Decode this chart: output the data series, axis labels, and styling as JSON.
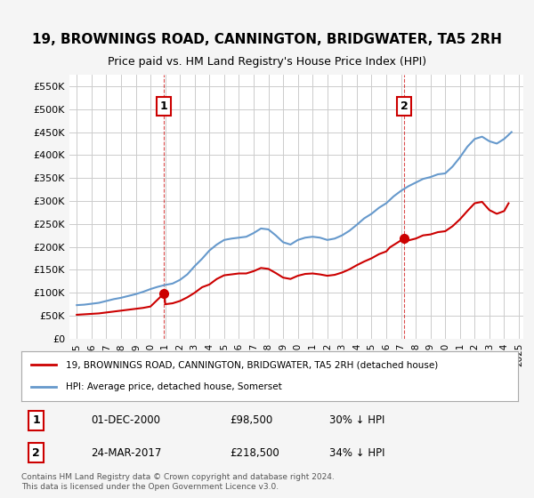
{
  "title": "19, BROWNINGS ROAD, CANNINGTON, BRIDGWATER, TA5 2RH",
  "subtitle": "Price paid vs. HM Land Registry's House Price Index (HPI)",
  "legend_line1": "19, BROWNINGS ROAD, CANNINGTON, BRIDGWATER, TA5 2RH (detached house)",
  "legend_line2": "HPI: Average price, detached house, Somerset",
  "footnote": "Contains HM Land Registry data © Crown copyright and database right 2024.\nThis data is licensed under the Open Government Licence v3.0.",
  "point1_label": "1",
  "point1_date": "01-DEC-2000",
  "point1_price": "£98,500",
  "point1_hpi": "30% ↓ HPI",
  "point2_label": "2",
  "point2_date": "24-MAR-2017",
  "point2_price": "£218,500",
  "point2_hpi": "34% ↓ HPI",
  "red_color": "#cc0000",
  "blue_color": "#6699cc",
  "ylim": [
    0,
    575000
  ],
  "yticks": [
    0,
    50000,
    100000,
    150000,
    200000,
    250000,
    300000,
    350000,
    400000,
    450000,
    500000,
    550000
  ],
  "ytick_labels": [
    "£0",
    "£50K",
    "£100K",
    "£150K",
    "£200K",
    "£250K",
    "£300K",
    "£350K",
    "£400K",
    "£450K",
    "£500K",
    "£550K"
  ],
  "hpi_years": [
    1995,
    1995.5,
    1996,
    1996.5,
    1997,
    1997.5,
    1998,
    1998.5,
    1999,
    1999.5,
    2000,
    2000.5,
    2001,
    2001.5,
    2002,
    2002.5,
    2003,
    2003.5,
    2004,
    2004.5,
    2005,
    2005.5,
    2006,
    2006.5,
    2007,
    2007.5,
    2008,
    2008.5,
    2009,
    2009.5,
    2010,
    2010.5,
    2011,
    2011.5,
    2012,
    2012.5,
    2013,
    2013.5,
    2014,
    2014.5,
    2015,
    2015.5,
    2016,
    2016.5,
    2017,
    2017.5,
    2018,
    2018.5,
    2019,
    2019.5,
    2020,
    2020.5,
    2021,
    2021.5,
    2022,
    2022.5,
    2023,
    2023.5,
    2024,
    2024.5
  ],
  "hpi_values": [
    73000,
    74000,
    76000,
    78000,
    82000,
    86000,
    89000,
    93000,
    97000,
    102000,
    108000,
    113000,
    117000,
    120000,
    128000,
    140000,
    158000,
    174000,
    192000,
    205000,
    215000,
    218000,
    220000,
    222000,
    230000,
    240000,
    238000,
    225000,
    210000,
    205000,
    215000,
    220000,
    222000,
    220000,
    215000,
    218000,
    225000,
    235000,
    248000,
    262000,
    272000,
    285000,
    295000,
    310000,
    322000,
    332000,
    340000,
    348000,
    352000,
    358000,
    360000,
    375000,
    395000,
    418000,
    435000,
    440000,
    430000,
    425000,
    435000,
    450000
  ],
  "red_years": [
    1995,
    1995.5,
    1996,
    1996.5,
    1997,
    1997.5,
    1998,
    1998.5,
    1999,
    1999.5,
    2000,
    2000.92,
    2001,
    2001.5,
    2002,
    2002.5,
    2003,
    2003.5,
    2004,
    2004.5,
    2005,
    2005.5,
    2006,
    2006.5,
    2007,
    2007.5,
    2008,
    2008.5,
    2009,
    2009.5,
    2010,
    2010.5,
    2011,
    2011.5,
    2012,
    2012.5,
    2013,
    2013.5,
    2014,
    2014.5,
    2015,
    2015.5,
    2016,
    2016.25,
    2017.22,
    2017.5,
    2018,
    2018.5,
    2019,
    2019.5,
    2020,
    2020.5,
    2021,
    2021.5,
    2022,
    2022.5,
    2023,
    2023.5,
    2024,
    2024.3
  ],
  "red_values": [
    52000,
    53000,
    54000,
    55000,
    57000,
    59000,
    61000,
    63000,
    65000,
    67000,
    70000,
    98500,
    75000,
    77000,
    82000,
    90000,
    100000,
    112000,
    118000,
    130000,
    138000,
    140000,
    142000,
    142000,
    147000,
    154000,
    152000,
    143000,
    133000,
    130000,
    137000,
    141000,
    142000,
    140000,
    137000,
    139000,
    144000,
    151000,
    160000,
    168000,
    175000,
    184000,
    190000,
    199000,
    218500,
    214000,
    218000,
    225000,
    227000,
    232000,
    234000,
    245000,
    260000,
    278000,
    295000,
    298000,
    280000,
    272000,
    278000,
    295000
  ],
  "point1_x": 2000.92,
  "point1_y": 98500,
  "point1_vline_x": 2000.92,
  "point2_x": 2017.22,
  "point2_y": 218500,
  "point2_vline_x": 2017.22,
  "xtick_years": [
    1995,
    1996,
    1997,
    1998,
    1999,
    2000,
    2001,
    2002,
    2003,
    2004,
    2005,
    2006,
    2007,
    2008,
    2009,
    2010,
    2011,
    2012,
    2013,
    2014,
    2015,
    2016,
    2017,
    2018,
    2019,
    2020,
    2021,
    2022,
    2023,
    2024,
    2025
  ],
  "bg_color": "#f5f5f5",
  "plot_bg": "#ffffff"
}
